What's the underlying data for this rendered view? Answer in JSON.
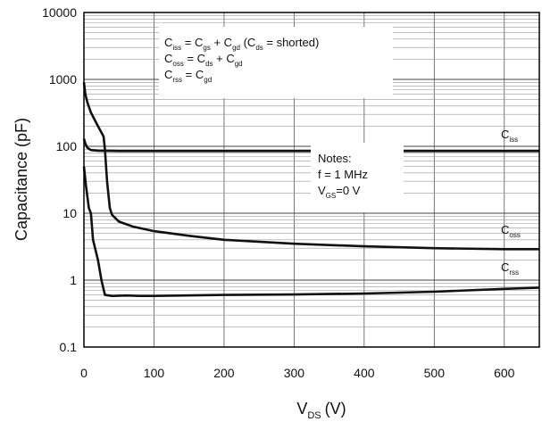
{
  "chart_data": {
    "type": "line",
    "xlabel_main": "V",
    "xlabel_sub": "DS",
    "xlabel_unit": "(V)",
    "ylabel": "Capacitance (pF)",
    "xlim": [
      0,
      650
    ],
    "ylim": [
      0.1,
      10000
    ],
    "y_scale": "log",
    "grid": true,
    "x_ticks": [
      "0",
      "100",
      "200",
      "300",
      "400",
      "500",
      "600"
    ],
    "y_ticks": [
      "0.1",
      "1",
      "10",
      "100",
      "1000",
      "10000"
    ],
    "series": [
      {
        "name_main": "C",
        "name_sub": "iss",
        "points": [
          [
            0,
            130
          ],
          [
            2,
            110
          ],
          [
            5,
            95
          ],
          [
            10,
            88
          ],
          [
            20,
            86
          ],
          [
            50,
            85
          ],
          [
            100,
            85
          ],
          [
            200,
            85
          ],
          [
            300,
            85
          ],
          [
            400,
            85
          ],
          [
            500,
            85
          ],
          [
            600,
            85
          ],
          [
            650,
            85
          ]
        ]
      },
      {
        "name_main": "C",
        "name_sub": "oss",
        "points": [
          [
            0,
            900
          ],
          [
            2,
            600
          ],
          [
            5,
            450
          ],
          [
            10,
            320
          ],
          [
            20,
            200
          ],
          [
            28,
            140
          ],
          [
            30,
            90
          ],
          [
            33,
            30
          ],
          [
            37,
            12
          ],
          [
            40,
            9.5
          ],
          [
            50,
            7.5
          ],
          [
            70,
            6.3
          ],
          [
            100,
            5.4
          ],
          [
            150,
            4.6
          ],
          [
            200,
            4.0
          ],
          [
            300,
            3.5
          ],
          [
            400,
            3.2
          ],
          [
            500,
            3.0
          ],
          [
            600,
            2.9
          ],
          [
            650,
            2.9
          ]
        ]
      },
      {
        "name_main": "C",
        "name_sub": "rss",
        "points": [
          [
            0,
            50
          ],
          [
            3,
            25
          ],
          [
            7,
            12
          ],
          [
            10,
            10
          ],
          [
            13,
            4
          ],
          [
            20,
            2
          ],
          [
            25,
            1.0
          ],
          [
            30,
            0.6
          ],
          [
            40,
            0.58
          ],
          [
            60,
            0.59
          ],
          [
            80,
            0.58
          ],
          [
            100,
            0.58
          ],
          [
            200,
            0.6
          ],
          [
            300,
            0.61
          ],
          [
            400,
            0.63
          ],
          [
            500,
            0.67
          ],
          [
            600,
            0.74
          ],
          [
            650,
            0.77
          ]
        ]
      }
    ],
    "annotations": {
      "definitions": [
        {
          "parts": [
            [
              "C",
              ""
            ],
            [
              "iss",
              "sub"
            ],
            [
              " = C",
              ""
            ],
            [
              "gs",
              "sub"
            ],
            [
              " + C",
              ""
            ],
            [
              "gd",
              "sub"
            ],
            [
              " (C",
              ""
            ],
            [
              "ds",
              "sub"
            ],
            [
              " = shorted)",
              ""
            ]
          ]
        },
        {
          "parts": [
            [
              "C",
              ""
            ],
            [
              "oss",
              "sub"
            ],
            [
              " = C",
              ""
            ],
            [
              "ds",
              "sub"
            ],
            [
              " + C",
              ""
            ],
            [
              "gd",
              "sub"
            ]
          ]
        },
        {
          "parts": [
            [
              "C",
              ""
            ],
            [
              "rss",
              "sub"
            ],
            [
              " = C",
              ""
            ],
            [
              "gd",
              "sub"
            ]
          ]
        }
      ],
      "notes": [
        {
          "parts": [
            [
              "Notes:",
              ""
            ]
          ]
        },
        {
          "parts": [
            [
              "f = 1 MHz",
              ""
            ]
          ]
        },
        {
          "parts": [
            [
              "V",
              ""
            ],
            [
              "GS",
              "sub"
            ],
            [
              "=0 V",
              ""
            ]
          ]
        }
      ]
    }
  }
}
